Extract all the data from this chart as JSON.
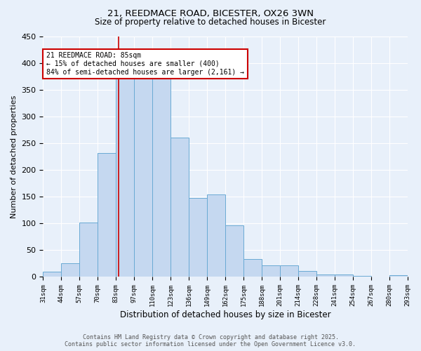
{
  "title1": "21, REEDMACE ROAD, BICESTER, OX26 3WN",
  "title2": "Size of property relative to detached houses in Bicester",
  "xlabel": "Distribution of detached houses by size in Bicester",
  "ylabel": "Number of detached properties",
  "bin_labels": [
    "31sqm",
    "44sqm",
    "57sqm",
    "70sqm",
    "83sqm",
    "97sqm",
    "110sqm",
    "123sqm",
    "136sqm",
    "149sqm",
    "162sqm",
    "175sqm",
    "188sqm",
    "201sqm",
    "214sqm",
    "228sqm",
    "241sqm",
    "254sqm",
    "267sqm",
    "280sqm",
    "293sqm"
  ],
  "bar_values": [
    10,
    25,
    101,
    232,
    370,
    375,
    375,
    260,
    148,
    154,
    96,
    33,
    21,
    21,
    11,
    4,
    4,
    2,
    0,
    3
  ],
  "bar_color": "#c5d8f0",
  "bar_edge_color": "#6aaad4",
  "annotation_text": "21 REEDMACE ROAD: 85sqm\n← 15% of detached houses are smaller (400)\n84% of semi-detached houses are larger (2,161) →",
  "annotation_box_color": "#ffffff",
  "annotation_box_edge": "#cc0000",
  "vline_color": "#cc0000",
  "ylim": [
    0,
    450
  ],
  "yticks": [
    0,
    50,
    100,
    150,
    200,
    250,
    300,
    350,
    400,
    450
  ],
  "footer1": "Contains HM Land Registry data © Crown copyright and database right 2025.",
  "footer2": "Contains public sector information licensed under the Open Government Licence v3.0.",
  "bg_color": "#e8f0fa"
}
